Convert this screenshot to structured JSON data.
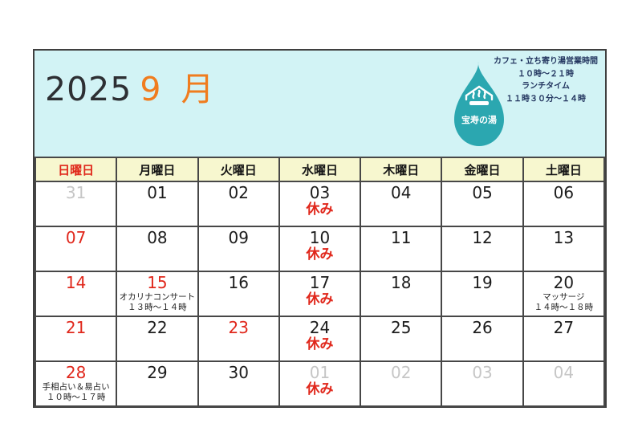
{
  "header": {
    "year": "2025",
    "month": "9 月",
    "info_lines": [
      "カフェ・立ち寄り湯営業時間",
      "１０時〜２１時",
      "ランチタイム",
      "１１時３０分〜１４時"
    ],
    "logo_text": "宝寿の湯"
  },
  "colors": {
    "header_bg": "#d2f3f5",
    "drop_teal": "#2ba7b0",
    "weekday_bg": "#f7f7cf",
    "holiday_red": "#e0271b",
    "month_orange": "#f07c1e",
    "muted_gray": "#c6c6c6",
    "info_navy": "#22355f"
  },
  "weekdays": [
    {
      "label": "日曜日",
      "cls": "red"
    },
    {
      "label": "月曜日",
      "cls": ""
    },
    {
      "label": "火曜日",
      "cls": ""
    },
    {
      "label": "水曜日",
      "cls": ""
    },
    {
      "label": "木曜日",
      "cls": ""
    },
    {
      "label": "金曜日",
      "cls": ""
    },
    {
      "label": "土曜日",
      "cls": ""
    }
  ],
  "weeks": [
    [
      {
        "day": "31",
        "cls": "muted"
      },
      {
        "day": "01"
      },
      {
        "day": "02"
      },
      {
        "day": "03",
        "notes": [
          {
            "text": "休み",
            "cls": "closed"
          }
        ]
      },
      {
        "day": "04"
      },
      {
        "day": "05"
      },
      {
        "day": "06"
      }
    ],
    [
      {
        "day": "07",
        "cls": "red"
      },
      {
        "day": "08"
      },
      {
        "day": "09"
      },
      {
        "day": "10",
        "notes": [
          {
            "text": "休み",
            "cls": "closed"
          }
        ]
      },
      {
        "day": "11"
      },
      {
        "day": "12"
      },
      {
        "day": "13"
      }
    ],
    [
      {
        "day": "14",
        "cls": "red"
      },
      {
        "day": "15",
        "cls": "red",
        "notes": [
          {
            "text": "オカリナコンサート",
            "cls": "event"
          },
          {
            "text": "１３時〜１４時",
            "cls": "event"
          }
        ]
      },
      {
        "day": "16"
      },
      {
        "day": "17",
        "notes": [
          {
            "text": "休み",
            "cls": "closed"
          }
        ]
      },
      {
        "day": "18"
      },
      {
        "day": "19"
      },
      {
        "day": "20",
        "notes": [
          {
            "text": "マッサージ",
            "cls": "event"
          },
          {
            "text": "１４時〜１８時",
            "cls": "event"
          }
        ]
      }
    ],
    [
      {
        "day": "21",
        "cls": "red"
      },
      {
        "day": "22"
      },
      {
        "day": "23",
        "cls": "red"
      },
      {
        "day": "24",
        "notes": [
          {
            "text": "休み",
            "cls": "closed"
          }
        ]
      },
      {
        "day": "25"
      },
      {
        "day": "26"
      },
      {
        "day": "27"
      }
    ],
    [
      {
        "day": "28",
        "cls": "red",
        "notes": [
          {
            "text": "手相占い＆易占い",
            "cls": "event"
          },
          {
            "text": "１０時〜１７時",
            "cls": "event"
          }
        ]
      },
      {
        "day": "29"
      },
      {
        "day": "30"
      },
      {
        "day": "01",
        "cls": "muted",
        "notes": [
          {
            "text": "休み",
            "cls": "closed"
          }
        ]
      },
      {
        "day": "02",
        "cls": "muted"
      },
      {
        "day": "03",
        "cls": "muted"
      },
      {
        "day": "04",
        "cls": "muted"
      }
    ]
  ]
}
